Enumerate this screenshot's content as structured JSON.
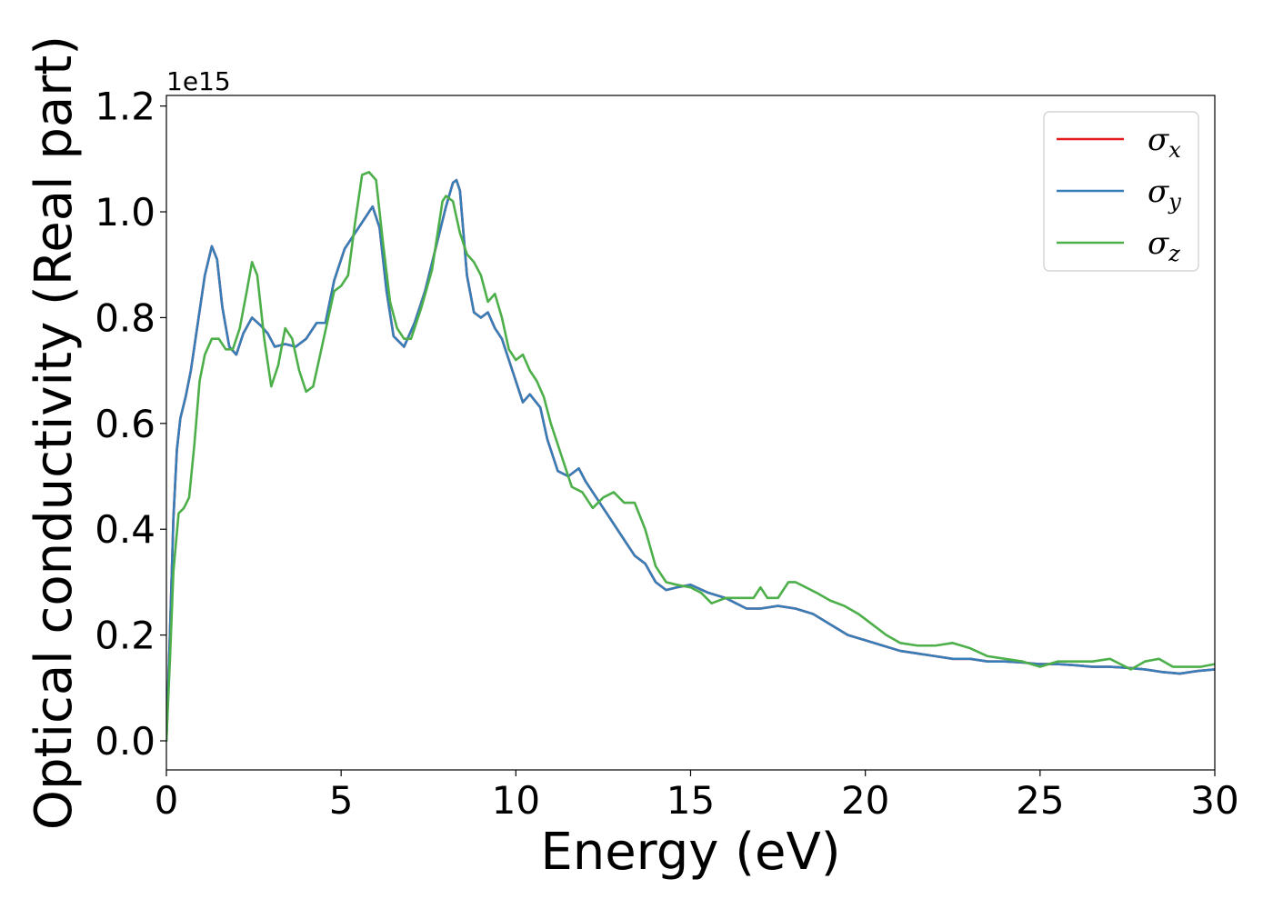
{
  "chart_data": {
    "type": "line",
    "title": "",
    "xlabel": "Energy (eV)",
    "ylabel": "Optical conductivity (Real part)",
    "y_offset_label": "1e15",
    "xlim": [
      0,
      30
    ],
    "ylim": [
      -0.055,
      1.22
    ],
    "x_ticks": [
      0,
      5,
      10,
      15,
      20,
      25,
      30
    ],
    "y_ticks": [
      0.0,
      0.2,
      0.4,
      0.6,
      0.8,
      1.0,
      1.2
    ],
    "x_tick_labels": [
      "0",
      "5",
      "10",
      "15",
      "20",
      "25",
      "30"
    ],
    "y_tick_labels": [
      "0.0",
      "0.2",
      "0.4",
      "0.6",
      "0.8",
      "1.0",
      "1.2"
    ],
    "grid": false,
    "legend_position": "top-right",
    "series": [
      {
        "name": "σx",
        "symbol": "σ",
        "subscript": "x",
        "color": "#e41a1c",
        "x": [
          0,
          0.1,
          0.2,
          0.3,
          0.4,
          0.55,
          0.7,
          0.9,
          1.1,
          1.3,
          1.45,
          1.6,
          1.8,
          2.0,
          2.2,
          2.45,
          2.7,
          2.9,
          3.1,
          3.4,
          3.7,
          4.0,
          4.3,
          4.55,
          4.8,
          5.1,
          5.4,
          5.7,
          5.9,
          6.1,
          6.3,
          6.5,
          6.8,
          7.1,
          7.4,
          7.7,
          8.0,
          8.2,
          8.3,
          8.4,
          8.6,
          8.8,
          9.0,
          9.2,
          9.4,
          9.6,
          9.8,
          10.0,
          10.2,
          10.4,
          10.7,
          10.9,
          11.2,
          11.5,
          11.8,
          12.0,
          12.2,
          12.5,
          12.8,
          13.1,
          13.4,
          13.7,
          14.0,
          14.3,
          14.6,
          15.0,
          15.5,
          16.0,
          16.3,
          16.6,
          17.0,
          17.5,
          18.0,
          18.5,
          19.0,
          19.5,
          20.0,
          20.5,
          21.0,
          21.5,
          22.0,
          22.5,
          23.0,
          23.5,
          24.0,
          24.5,
          25.0,
          25.5,
          26.0,
          26.5,
          27.0,
          27.5,
          28.0,
          28.5,
          29.0,
          29.5,
          30.0
        ],
        "y": [
          0.0,
          0.2,
          0.42,
          0.55,
          0.61,
          0.65,
          0.7,
          0.79,
          0.88,
          0.935,
          0.91,
          0.82,
          0.745,
          0.73,
          0.77,
          0.8,
          0.785,
          0.77,
          0.745,
          0.75,
          0.745,
          0.76,
          0.79,
          0.79,
          0.87,
          0.93,
          0.96,
          0.99,
          1.01,
          0.97,
          0.85,
          0.765,
          0.745,
          0.79,
          0.85,
          0.93,
          1.01,
          1.055,
          1.06,
          1.04,
          0.88,
          0.81,
          0.8,
          0.81,
          0.78,
          0.76,
          0.72,
          0.68,
          0.64,
          0.655,
          0.63,
          0.57,
          0.51,
          0.5,
          0.515,
          0.49,
          0.47,
          0.44,
          0.41,
          0.38,
          0.35,
          0.335,
          0.3,
          0.285,
          0.29,
          0.295,
          0.28,
          0.27,
          0.26,
          0.25,
          0.25,
          0.255,
          0.25,
          0.24,
          0.22,
          0.2,
          0.19,
          0.18,
          0.17,
          0.165,
          0.16,
          0.155,
          0.155,
          0.15,
          0.15,
          0.148,
          0.145,
          0.145,
          0.143,
          0.14,
          0.14,
          0.138,
          0.135,
          0.13,
          0.127,
          0.132,
          0.135
        ]
      },
      {
        "name": "σy",
        "symbol": "σ",
        "subscript": "y",
        "color": "#377eb8",
        "x": [
          0,
          0.1,
          0.2,
          0.3,
          0.4,
          0.55,
          0.7,
          0.9,
          1.1,
          1.3,
          1.45,
          1.6,
          1.8,
          2.0,
          2.2,
          2.45,
          2.7,
          2.9,
          3.1,
          3.4,
          3.7,
          4.0,
          4.3,
          4.55,
          4.8,
          5.1,
          5.4,
          5.7,
          5.9,
          6.1,
          6.3,
          6.5,
          6.8,
          7.1,
          7.4,
          7.7,
          8.0,
          8.2,
          8.3,
          8.4,
          8.6,
          8.8,
          9.0,
          9.2,
          9.4,
          9.6,
          9.8,
          10.0,
          10.2,
          10.4,
          10.7,
          10.9,
          11.2,
          11.5,
          11.8,
          12.0,
          12.2,
          12.5,
          12.8,
          13.1,
          13.4,
          13.7,
          14.0,
          14.3,
          14.6,
          15.0,
          15.5,
          16.0,
          16.3,
          16.6,
          17.0,
          17.5,
          18.0,
          18.5,
          19.0,
          19.5,
          20.0,
          20.5,
          21.0,
          21.5,
          22.0,
          22.5,
          23.0,
          23.5,
          24.0,
          24.5,
          25.0,
          25.5,
          26.0,
          26.5,
          27.0,
          27.5,
          28.0,
          28.5,
          29.0,
          29.5,
          30.0
        ],
        "y": [
          0.0,
          0.2,
          0.42,
          0.55,
          0.61,
          0.65,
          0.7,
          0.79,
          0.88,
          0.935,
          0.91,
          0.82,
          0.745,
          0.73,
          0.77,
          0.8,
          0.785,
          0.77,
          0.745,
          0.75,
          0.745,
          0.76,
          0.79,
          0.79,
          0.87,
          0.93,
          0.96,
          0.99,
          1.01,
          0.97,
          0.85,
          0.765,
          0.745,
          0.79,
          0.85,
          0.93,
          1.01,
          1.055,
          1.06,
          1.04,
          0.88,
          0.81,
          0.8,
          0.81,
          0.78,
          0.76,
          0.72,
          0.68,
          0.64,
          0.655,
          0.63,
          0.57,
          0.51,
          0.5,
          0.515,
          0.49,
          0.47,
          0.44,
          0.41,
          0.38,
          0.35,
          0.335,
          0.3,
          0.285,
          0.29,
          0.295,
          0.28,
          0.27,
          0.26,
          0.25,
          0.25,
          0.255,
          0.25,
          0.24,
          0.22,
          0.2,
          0.19,
          0.18,
          0.17,
          0.165,
          0.16,
          0.155,
          0.155,
          0.15,
          0.15,
          0.148,
          0.145,
          0.145,
          0.143,
          0.14,
          0.14,
          0.138,
          0.135,
          0.13,
          0.127,
          0.132,
          0.135
        ]
      },
      {
        "name": "σz",
        "symbol": "σ",
        "subscript": "z",
        "color": "#4daf4a",
        "x": [
          0,
          0.1,
          0.2,
          0.35,
          0.5,
          0.65,
          0.8,
          0.95,
          1.1,
          1.3,
          1.5,
          1.7,
          1.9,
          2.1,
          2.3,
          2.45,
          2.6,
          2.8,
          3.0,
          3.2,
          3.4,
          3.6,
          3.8,
          4.0,
          4.2,
          4.4,
          4.6,
          4.8,
          5.0,
          5.2,
          5.4,
          5.6,
          5.8,
          6.0,
          6.2,
          6.4,
          6.6,
          6.8,
          7.0,
          7.3,
          7.6,
          7.9,
          8.0,
          8.2,
          8.4,
          8.6,
          8.8,
          9.0,
          9.2,
          9.4,
          9.6,
          9.8,
          10.0,
          10.2,
          10.4,
          10.6,
          10.8,
          11.0,
          11.3,
          11.6,
          11.9,
          12.2,
          12.5,
          12.8,
          13.1,
          13.4,
          13.7,
          14.0,
          14.3,
          14.6,
          15.0,
          15.3,
          15.6,
          16.0,
          16.5,
          16.8,
          17.0,
          17.2,
          17.5,
          17.8,
          18.0,
          18.3,
          18.6,
          19.0,
          19.4,
          19.8,
          20.2,
          20.6,
          21.0,
          21.5,
          22.0,
          22.5,
          23.0,
          23.5,
          24.0,
          24.5,
          25.0,
          25.5,
          26.0,
          26.5,
          27.0,
          27.3,
          27.6,
          28.0,
          28.4,
          28.8,
          29.2,
          29.6,
          30.0
        ],
        "y": [
          0.0,
          0.15,
          0.32,
          0.43,
          0.44,
          0.46,
          0.56,
          0.68,
          0.73,
          0.76,
          0.76,
          0.74,
          0.74,
          0.78,
          0.85,
          0.905,
          0.88,
          0.76,
          0.67,
          0.71,
          0.78,
          0.76,
          0.7,
          0.66,
          0.67,
          0.73,
          0.79,
          0.85,
          0.86,
          0.88,
          0.98,
          1.07,
          1.075,
          1.06,
          0.94,
          0.83,
          0.78,
          0.76,
          0.76,
          0.82,
          0.89,
          1.02,
          1.03,
          1.02,
          0.96,
          0.92,
          0.905,
          0.88,
          0.83,
          0.845,
          0.8,
          0.74,
          0.72,
          0.73,
          0.7,
          0.68,
          0.65,
          0.6,
          0.54,
          0.48,
          0.47,
          0.44,
          0.46,
          0.47,
          0.45,
          0.45,
          0.4,
          0.33,
          0.3,
          0.295,
          0.29,
          0.28,
          0.26,
          0.27,
          0.27,
          0.27,
          0.29,
          0.27,
          0.27,
          0.3,
          0.3,
          0.29,
          0.28,
          0.265,
          0.255,
          0.24,
          0.22,
          0.2,
          0.185,
          0.18,
          0.18,
          0.185,
          0.175,
          0.16,
          0.155,
          0.15,
          0.14,
          0.15,
          0.15,
          0.15,
          0.155,
          0.145,
          0.135,
          0.15,
          0.155,
          0.14,
          0.14,
          0.14,
          0.145
        ]
      }
    ]
  }
}
